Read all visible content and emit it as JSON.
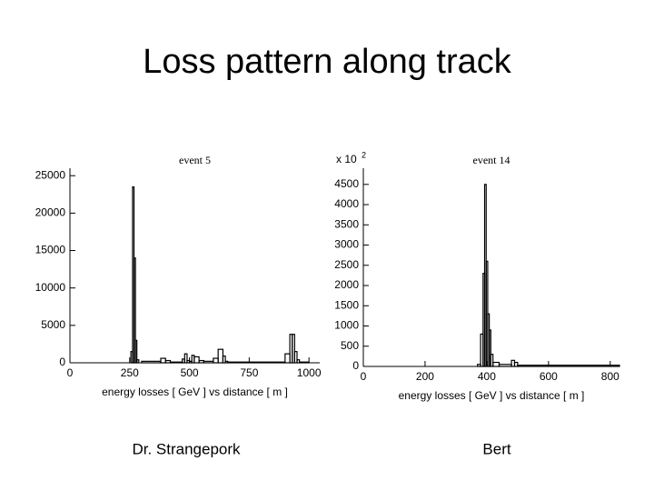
{
  "slide": {
    "title": "Loss pattern along track",
    "captions": [
      "Dr. Strangepork",
      "Bert"
    ]
  },
  "chart_data": [
    {
      "type": "histogram",
      "title": "event 5",
      "x_label": "energy losses [ GeV ] vs distance [ m ]",
      "bins": [
        0,
        255,
        262,
        268,
        274,
        280,
        288,
        300,
        380,
        400,
        420,
        470,
        480,
        490,
        500,
        510,
        520,
        540,
        560,
        600,
        620,
        640,
        650,
        660,
        900,
        920,
        930,
        940,
        950,
        960,
        1000,
        1045
      ],
      "values": [
        0,
        1500,
        23500,
        14000,
        3000,
        400,
        0,
        200,
        600,
        300,
        100,
        500,
        1200,
        300,
        200,
        1000,
        800,
        300,
        200,
        600,
        1800,
        900,
        200,
        100,
        1200,
        3800,
        3800,
        1500,
        400,
        100,
        0
      ],
      "color": "#000000",
      "xlim": [
        0,
        1045
      ],
      "xticks": [
        0,
        250,
        500,
        750,
        1000
      ],
      "ylim": [
        0,
        26000
      ],
      "yticks": [
        0,
        5000,
        10000,
        15000,
        20000,
        25000
      ]
    },
    {
      "type": "histogram",
      "title": "event 14",
      "x_label": "energy losses [ GeV ] vs distance [ m ]",
      "y_scale_label": "x 10",
      "y_scale_exponent": "2",
      "bins": [
        0,
        370,
        380,
        388,
        393,
        398,
        403,
        408,
        413,
        420,
        440,
        480,
        490,
        500,
        830
      ],
      "values": [
        0,
        50,
        800,
        2300,
        4500,
        2600,
        1300,
        900,
        300,
        100,
        50,
        150,
        100,
        30
      ],
      "color": "#000000",
      "xlim": [
        0,
        830
      ],
      "xticks": [
        0,
        200,
        400,
        600,
        800
      ],
      "ylim": [
        0,
        4900
      ],
      "yticks": [
        0,
        500,
        1000,
        1500,
        2000,
        2500,
        3000,
        3500,
        4000,
        4500
      ]
    }
  ]
}
